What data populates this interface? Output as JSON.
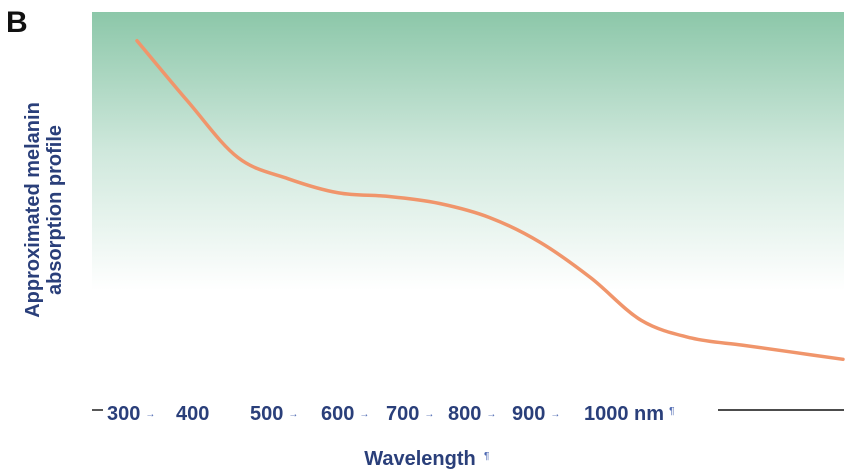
{
  "panel_label": "B",
  "chart_data": {
    "type": "line",
    "title": "",
    "xlabel": "Wavelength",
    "ylabel_lines": [
      "Approximated melanin",
      "absorption profile"
    ],
    "x_ticks": [
      "300",
      "400",
      "500",
      "600",
      "700",
      "800",
      "900",
      "1000 nm"
    ],
    "xlim": [
      300,
      1000
    ],
    "ylim": [
      0,
      1
    ],
    "grid": false,
    "background": "vertical gradient, green at top fading to white",
    "series": [
      {
        "color": "#f0956b",
        "x": [
          300,
          350,
          400,
          450,
          500,
          550,
          600,
          650,
          700,
          750,
          800,
          850,
          900,
          950,
          1000
        ],
        "y": [
          0.95,
          0.78,
          0.62,
          0.56,
          0.52,
          0.51,
          0.49,
          0.45,
          0.38,
          0.28,
          0.16,
          0.11,
          0.09,
          0.07,
          0.05
        ]
      }
    ],
    "colors": {
      "background_top": "#8cc7a9",
      "background_bottom": "#ffffff",
      "line": "#f0956b",
      "text": "#2a3f7a",
      "arrow": "#4a66b0"
    }
  }
}
